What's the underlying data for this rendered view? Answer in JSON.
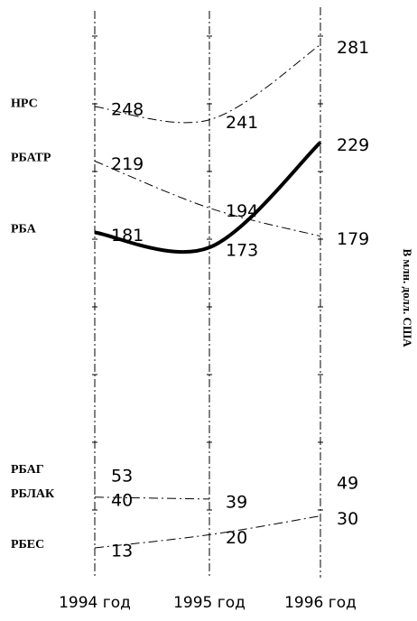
{
  "chart_data": {
    "type": "line",
    "categories": [
      "1994 год",
      "1995 год",
      "1996 год"
    ],
    "y_axis_label": "В млн. долл. США",
    "ylim": [
      0,
      300
    ],
    "series": [
      {
        "name": "НРС",
        "color": "#000000",
        "dashed": true,
        "values": [
          248,
          241,
          281
        ]
      },
      {
        "name": "РБАТР",
        "color": "#000000",
        "dashed": true,
        "values": [
          219,
          194,
          179
        ]
      },
      {
        "name": "РБА",
        "color": "#000000",
        "dashed": false,
        "values": [
          181,
          173,
          229
        ]
      },
      {
        "name": "РБАГ",
        "color": "#000000",
        "dashed": true,
        "values": [
          53,
          null,
          49
        ]
      },
      {
        "name": "РБЛАК",
        "color": "#000000",
        "dashed": true,
        "values": [
          40,
          39,
          null
        ]
      },
      {
        "name": "РБЕС",
        "color": "#000000",
        "dashed": true,
        "values": [
          13,
          20,
          30
        ]
      }
    ]
  }
}
